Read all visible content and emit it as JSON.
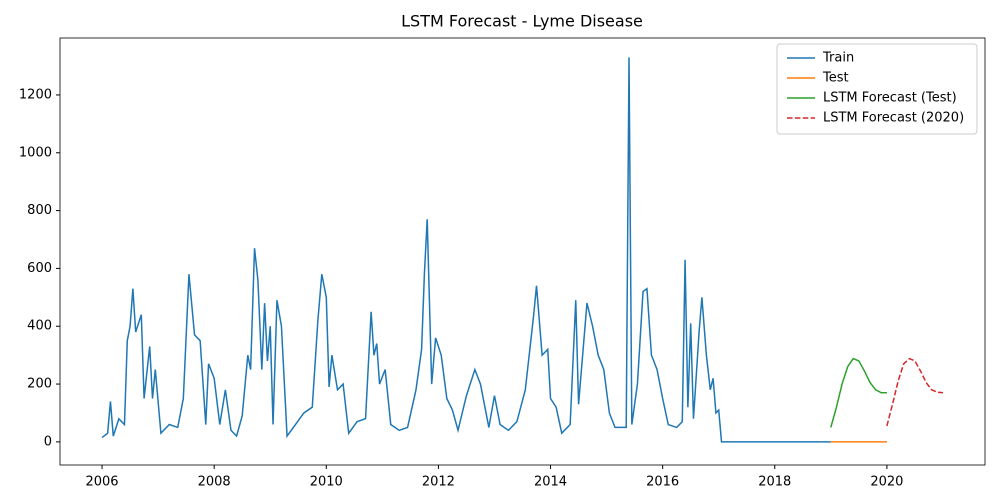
{
  "chart_data": {
    "type": "line",
    "title": "LSTM Forecast - Lyme Disease",
    "xlim": [
      2005.25,
      2021.75
    ],
    "ylim": [
      -80,
      1397
    ],
    "xticks": [
      2006,
      2008,
      2010,
      2012,
      2014,
      2016,
      2018,
      2020
    ],
    "yticks": [
      0,
      200,
      400,
      600,
      800,
      1000,
      1200
    ],
    "legend": "upper right",
    "series": [
      {
        "name": "Train",
        "color": "#1f77b4",
        "linestyle": "solid",
        "x": [
          2006.0,
          2006.1,
          2006.15,
          2006.2,
          2006.3,
          2006.4,
          2006.45,
          2006.5,
          2006.55,
          2006.6,
          2006.7,
          2006.75,
          2006.85,
          2006.9,
          2006.95,
          2007.05,
          2007.2,
          2007.35,
          2007.45,
          2007.55,
          2007.65,
          2007.75,
          2007.85,
          2007.9,
          2008.0,
          2008.1,
          2008.2,
          2008.3,
          2008.4,
          2008.5,
          2008.6,
          2008.65,
          2008.72,
          2008.78,
          2008.85,
          2008.9,
          2008.95,
          2009.0,
          2009.05,
          2009.12,
          2009.2,
          2009.3,
          2009.45,
          2009.6,
          2009.75,
          2009.85,
          2009.92,
          2010.0,
          2010.05,
          2010.1,
          2010.2,
          2010.3,
          2010.4,
          2010.55,
          2010.7,
          2010.8,
          2010.85,
          2010.9,
          2010.95,
          2011.05,
          2011.15,
          2011.3,
          2011.45,
          2011.6,
          2011.7,
          2011.75,
          2011.8,
          2011.88,
          2011.95,
          2012.05,
          2012.15,
          2012.25,
          2012.35,
          2012.5,
          2012.65,
          2012.75,
          2012.9,
          2013.0,
          2013.1,
          2013.25,
          2013.4,
          2013.55,
          2013.7,
          2013.75,
          2013.85,
          2013.95,
          2014.0,
          2014.1,
          2014.2,
          2014.35,
          2014.45,
          2014.5,
          2014.65,
          2014.75,
          2014.85,
          2014.95,
          2015.05,
          2015.15,
          2015.3,
          2015.35,
          2015.4,
          2015.45,
          2015.55,
          2015.65,
          2015.72,
          2015.8,
          2015.9,
          2016.0,
          2016.1,
          2016.25,
          2016.35,
          2016.4,
          2016.45,
          2016.5,
          2016.55,
          2016.65,
          2016.7,
          2016.78,
          2016.85,
          2016.9,
          2016.95,
          2017.0,
          2017.05,
          2019.0
        ],
        "values": [
          15,
          30,
          140,
          20,
          80,
          60,
          350,
          400,
          530,
          380,
          440,
          150,
          330,
          150,
          250,
          30,
          60,
          50,
          150,
          580,
          370,
          350,
          60,
          270,
          220,
          60,
          180,
          40,
          20,
          90,
          300,
          250,
          670,
          560,
          250,
          480,
          280,
          400,
          60,
          490,
          400,
          20,
          60,
          100,
          120,
          420,
          580,
          500,
          190,
          300,
          180,
          200,
          30,
          70,
          80,
          450,
          300,
          340,
          200,
          250,
          60,
          40,
          50,
          180,
          320,
          580,
          770,
          200,
          360,
          300,
          150,
          110,
          40,
          160,
          250,
          200,
          50,
          160,
          60,
          40,
          70,
          180,
          440,
          540,
          300,
          320,
          150,
          120,
          30,
          60,
          490,
          130,
          480,
          400,
          300,
          250,
          100,
          50,
          50,
          50,
          1330,
          60,
          200,
          520,
          530,
          300,
          250,
          150,
          60,
          50,
          70,
          630,
          120,
          410,
          80,
          380,
          500,
          300,
          180,
          220,
          100,
          110,
          0,
          0
        ]
      },
      {
        "name": "Test",
        "color": "#ff7f0e",
        "linestyle": "solid",
        "x": [
          2019.0,
          2020.0
        ],
        "values": [
          0,
          0
        ]
      },
      {
        "name": "LSTM Forecast (Test)",
        "color": "#2ca02c",
        "linestyle": "solid",
        "x": [
          2019.0,
          2019.1,
          2019.2,
          2019.3,
          2019.4,
          2019.5,
          2019.6,
          2019.7,
          2019.8,
          2019.9,
          2020.0
        ],
        "values": [
          50,
          120,
          200,
          260,
          288,
          280,
          245,
          205,
          180,
          170,
          170
        ]
      },
      {
        "name": "LSTM Forecast (2020)",
        "color": "#d62728",
        "linestyle": "dashed",
        "x": [
          2020.0,
          2020.1,
          2020.2,
          2020.3,
          2020.4,
          2020.5,
          2020.6,
          2020.7,
          2020.8,
          2020.9,
          2021.0
        ],
        "values": [
          55,
          130,
          210,
          270,
          288,
          280,
          245,
          205,
          180,
          172,
          170
        ]
      }
    ]
  }
}
